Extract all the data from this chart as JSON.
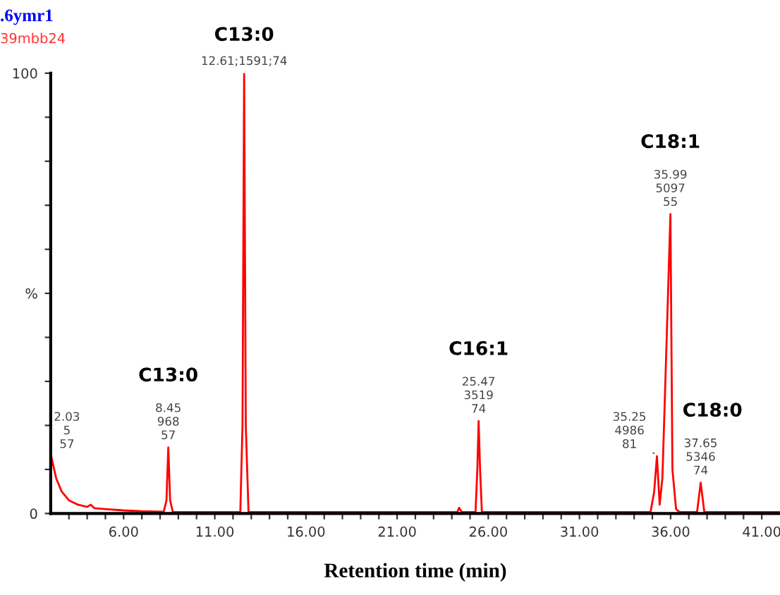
{
  "chart_data": {
    "type": "line",
    "xlabel": "Retention time (min)",
    "x": [
      2.0,
      2.03,
      2.3,
      2.6,
      3.0,
      3.5,
      4.0,
      4.2,
      4.4,
      5.0,
      6.0,
      7.0,
      8.2,
      8.35,
      8.45,
      8.55,
      8.7,
      12.4,
      12.52,
      12.61,
      12.7,
      12.85,
      24.3,
      24.4,
      24.55,
      25.3,
      25.4,
      25.47,
      25.55,
      25.65,
      34.9,
      35.1,
      35.25,
      35.4,
      35.55,
      35.75,
      35.99,
      36.1,
      36.3,
      36.5,
      37.45,
      37.65,
      37.85,
      42.0
    ],
    "series": [
      {
        "color": "#ff0000",
        "values": [
          13,
          13,
          8,
          5,
          3,
          2,
          1.5,
          2,
          1.2,
          1,
          0.7,
          0.5,
          0.4,
          3,
          15,
          3,
          0.3,
          0.3,
          20,
          100,
          20,
          0.3,
          0.3,
          1.3,
          0.3,
          0.3,
          10,
          21,
          10,
          0.3,
          0.3,
          5,
          13,
          2,
          8,
          35,
          68,
          10,
          1,
          0.3,
          0.3,
          7,
          0.3,
          0.3
        ]
      }
    ],
    "xlim": [
      2.0,
      42.0
    ],
    "xticks": [
      {
        "value": 3,
        "label": null
      },
      {
        "value": 4,
        "label": null
      },
      {
        "value": 5,
        "label": null
      },
      {
        "value": 6,
        "label": "6.00"
      },
      {
        "value": 7,
        "label": null
      },
      {
        "value": 8,
        "label": null
      },
      {
        "value": 9,
        "label": null
      },
      {
        "value": 10,
        "label": null
      },
      {
        "value": 11,
        "label": "11.00"
      },
      {
        "value": 12,
        "label": null
      },
      {
        "value": 13,
        "label": null
      },
      {
        "value": 14,
        "label": null
      },
      {
        "value": 15,
        "label": null
      },
      {
        "value": 16,
        "label": "16.00"
      },
      {
        "value": 17,
        "label": null
      },
      {
        "value": 18,
        "label": null
      },
      {
        "value": 19,
        "label": null
      },
      {
        "value": 20,
        "label": null
      },
      {
        "value": 21,
        "label": "21.00"
      },
      {
        "value": 22,
        "label": null
      },
      {
        "value": 23,
        "label": null
      },
      {
        "value": 24,
        "label": null
      },
      {
        "value": 25,
        "label": null
      },
      {
        "value": 26,
        "label": "26.00"
      },
      {
        "value": 27,
        "label": null
      },
      {
        "value": 28,
        "label": null
      },
      {
        "value": 29,
        "label": null
      },
      {
        "value": 30,
        "label": null
      },
      {
        "value": 31,
        "label": "31.00"
      },
      {
        "value": 32,
        "label": null
      },
      {
        "value": 33,
        "label": null
      },
      {
        "value": 34,
        "label": null
      },
      {
        "value": 35,
        "label": null
      },
      {
        "value": 36,
        "label": "36.00"
      },
      {
        "value": 37,
        "label": null
      },
      {
        "value": 38,
        "label": null
      },
      {
        "value": 39,
        "label": null
      },
      {
        "value": 40,
        "label": null
      },
      {
        "value": 41,
        "label": "41.00"
      }
    ],
    "ylim": [
      0,
      100
    ],
    "yticks": [
      0,
      {
        "value": 10,
        "label": null
      },
      {
        "value": 20,
        "label": null
      },
      {
        "value": 30,
        "label": null
      },
      {
        "value": 40,
        "label": null
      },
      {
        "value": 50,
        "label": "%"
      },
      {
        "value": 60,
        "label": null
      },
      {
        "value": 70,
        "label": null
      },
      {
        "value": 80,
        "label": null
      },
      {
        "value": 90,
        "label": null
      },
      100
    ],
    "grid": false,
    "legend": false,
    "marker": "none",
    "line_style": "solid",
    "annotations": [
      ".6ymr1",
      "39mbb24",
      "C13:0",
      "C13:0",
      "C16:1",
      "C18:1",
      "C18:0",
      {
        "text": "2.03\n5\n57",
        "x": 2.03,
        "y": 13
      },
      {
        "text": "8.45\n968\n57",
        "x": 8.45,
        "y": 15
      },
      {
        "text": "12.61;1591;74",
        "x": 12.61,
        "y": 100
      },
      {
        "text": "25.47\n3519\n74",
        "x": 25.47,
        "y": 21
      },
      {
        "text": "35.25\n4986\n81",
        "x": 35.25,
        "y": 13
      },
      {
        "text": "35.99\n5097\n55",
        "x": 35.99,
        "y": 68
      },
      {
        "text": "37.65\n5346\n74",
        "x": 37.65,
        "y": 7
      }
    ]
  }
}
